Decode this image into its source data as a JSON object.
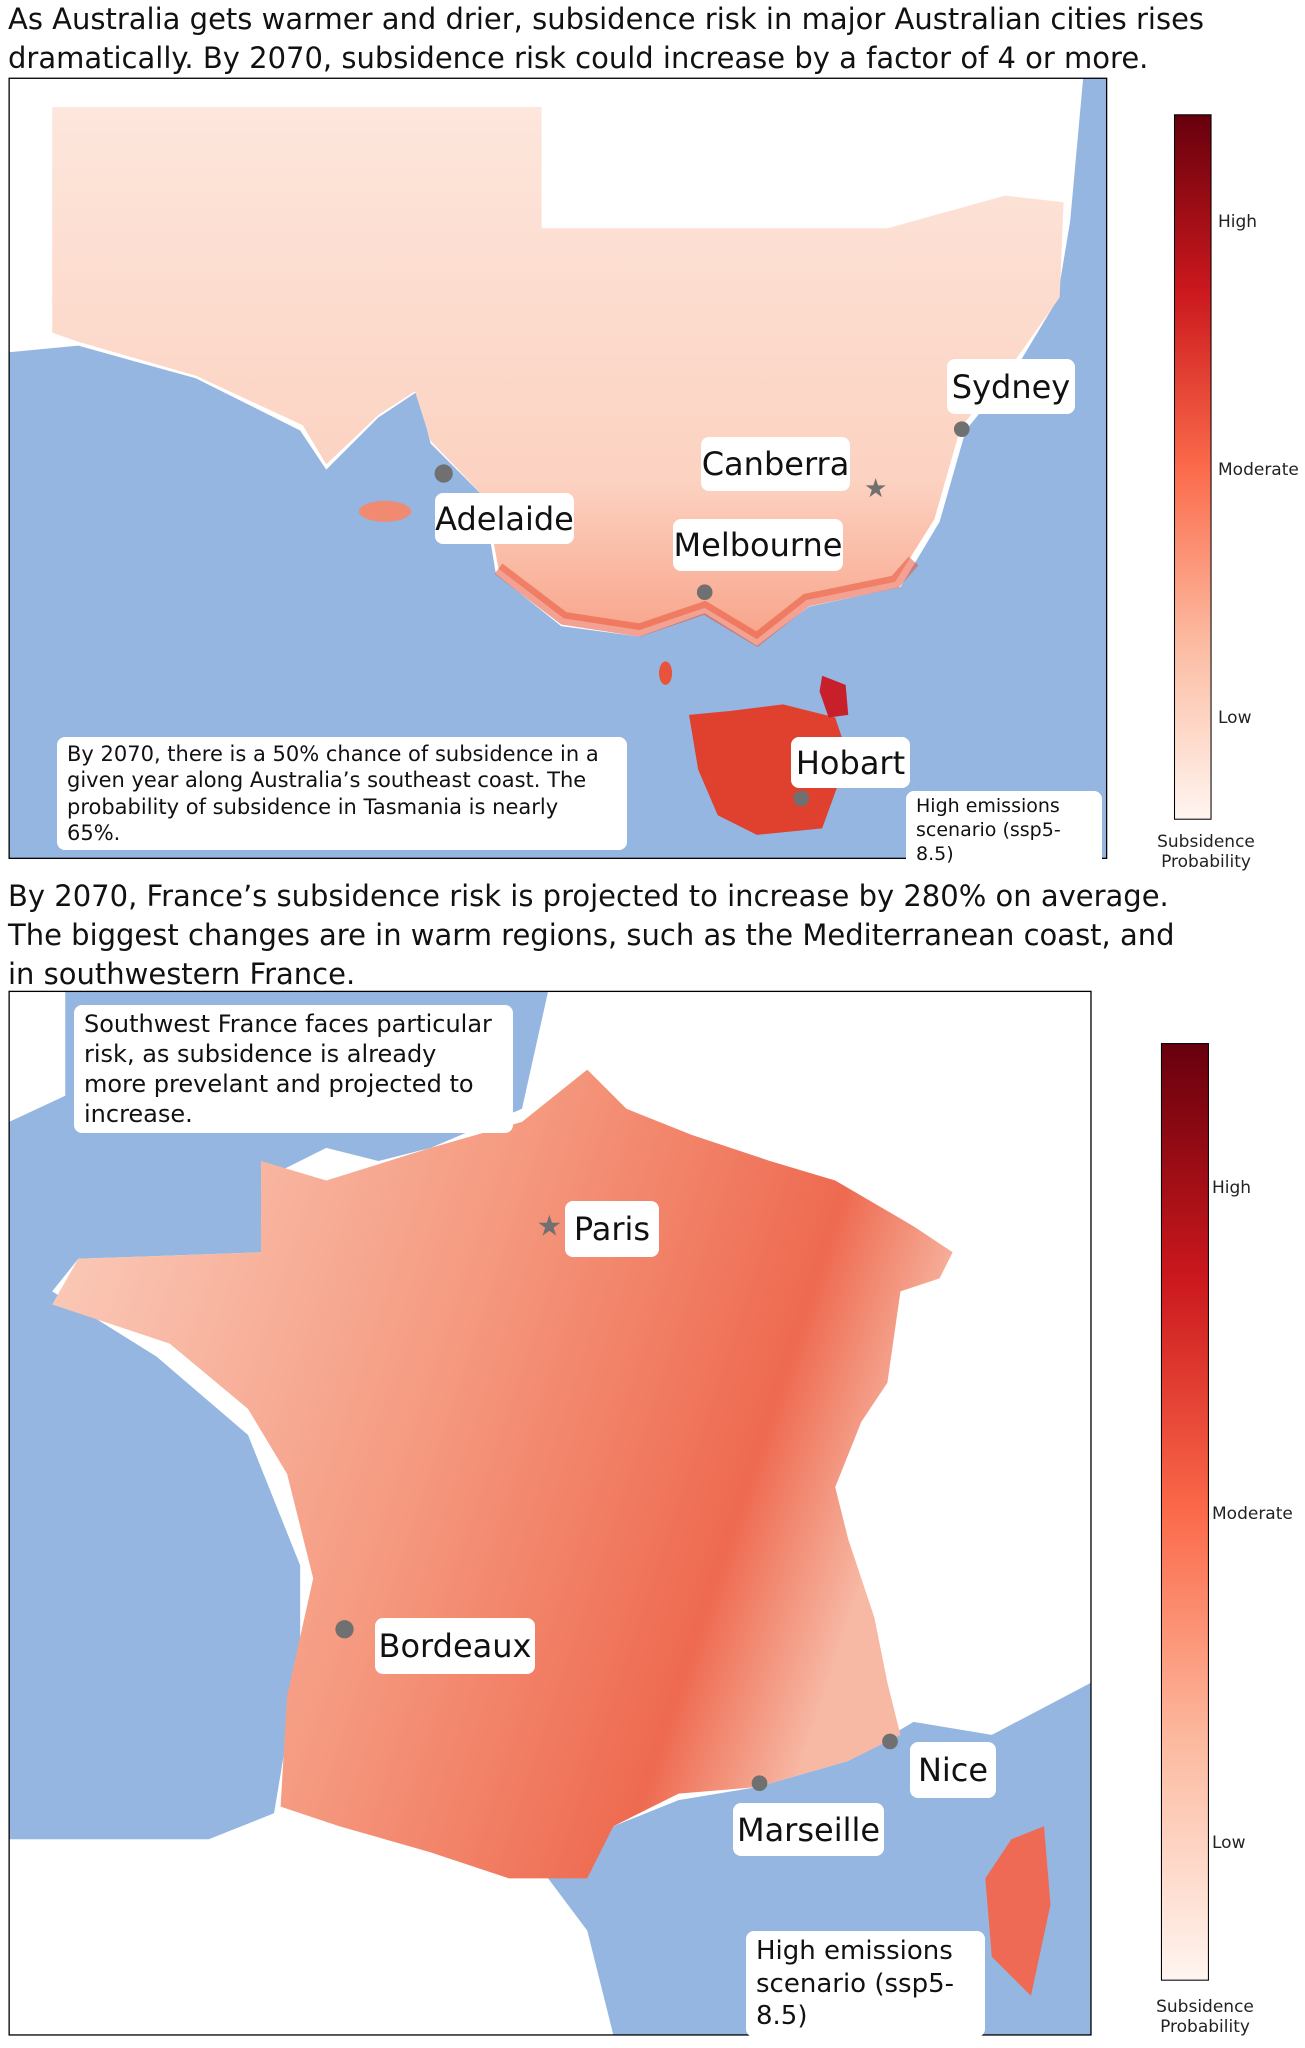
{
  "panels": [
    {
      "title": "As Australia gets warmer and drier, subsidence risk in major Australian cities rises dramatically. By 2070, subsidence risk could increase by a factor of 4 or more.",
      "cities": [
        "Sydney",
        "Canberra",
        "Adelaide",
        "Melbourne",
        "Hobart"
      ],
      "annotation": "By 2070, there is a 50% chance of subsidence in a given year along Australia’s southeast coast. The probability of subsidence in Tasmania is nearly 65%.",
      "scenario": "High emissions scenario (ssp5-8.5)",
      "colorbar": {
        "ticks": [
          "High",
          "Moderate",
          "Low"
        ],
        "label": "Subsidence Probability"
      }
    },
    {
      "title": "By 2070, France’s subsidence risk is projected to increase by 280% on average. The biggest changes are in warm regions, such as the Mediterranean coast, and in southwestern France.",
      "cities": [
        "Paris",
        "Bordeaux",
        "Nice",
        "Marseille"
      ],
      "annotation": "Southwest France faces particular risk, as subsidence is already more prevelant and projected to increase.",
      "scenario": "High emissions scenario (ssp5-8.5)",
      "colorbar": {
        "ticks": [
          "High",
          "Moderate",
          "Low"
        ],
        "label": "Subsidence Probability"
      }
    }
  ]
}
